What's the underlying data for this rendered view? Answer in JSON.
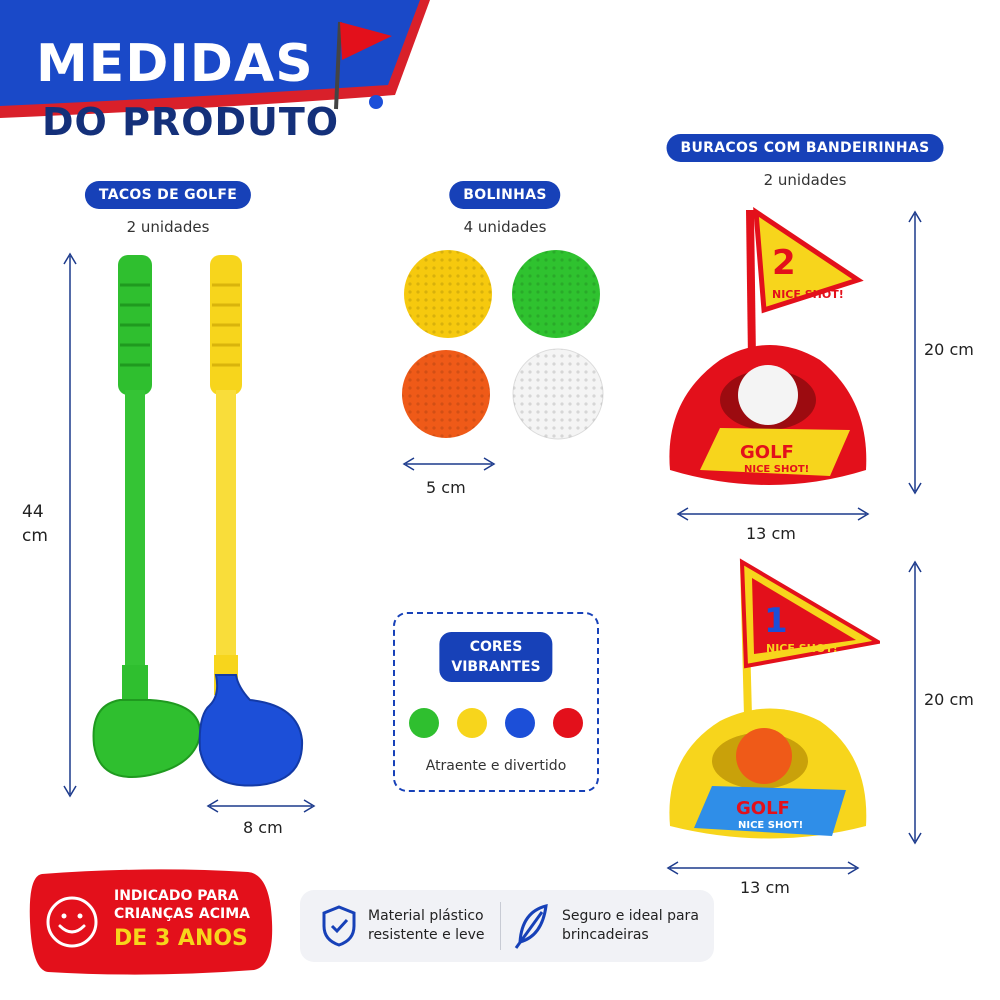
{
  "header": {
    "title_line1": "MEDIDAS",
    "title_line2": "DO PRODUTO",
    "banner_colors": [
      "#1a49c8",
      "#d9202a"
    ]
  },
  "clubs": {
    "label": "TACOS DE GOLFE",
    "quantity": "2 unidades",
    "height": "44",
    "height_unit": "cm",
    "head_width": "8 cm",
    "colors": [
      "#2fbf2f",
      "#f7d51c",
      "#1c4fd8"
    ]
  },
  "balls": {
    "label": "BOLINHAS",
    "quantity": "4 unidades",
    "diameter": "5 cm",
    "colors": [
      "#f6c90e",
      "#2fc22f",
      "#ef5a18",
      "#f4f4f4"
    ]
  },
  "holes": {
    "label": "BURACOS COM BANDEIRINHAS",
    "quantity": "2 unidades",
    "hole1": {
      "height": "20 cm",
      "width": "13 cm",
      "flag_number": "2",
      "flag_text": "NICE SHOT!",
      "base_text_1": "GOLF",
      "base_text_2": "NICE SHOT!"
    },
    "hole2": {
      "height": "20 cm",
      "width": "13 cm",
      "flag_number": "1",
      "flag_text": "NICE SHOT!",
      "base_text_1": "GOLF",
      "base_text_2": "NICE SHOT!"
    }
  },
  "colors_box": {
    "title_line1": "CORES",
    "title_line2": "VIBRANTES",
    "caption": "Atraente e divertido",
    "swatches": [
      "#2fbf2f",
      "#f7d51c",
      "#1c4fd8",
      "#e3101b"
    ]
  },
  "age_badge": {
    "line1": "INDICADO PARA",
    "line2": "CRIANÇAS ACIMA",
    "line3": "DE 3 ANOS",
    "icon": "smiley-icon"
  },
  "features": [
    {
      "icon": "shield-check-icon",
      "line1": "Material plástico",
      "line2": "resistente e leve"
    },
    {
      "icon": "feather-icon",
      "line1": "Seguro e ideal para",
      "line2": "brincadeiras"
    }
  ]
}
